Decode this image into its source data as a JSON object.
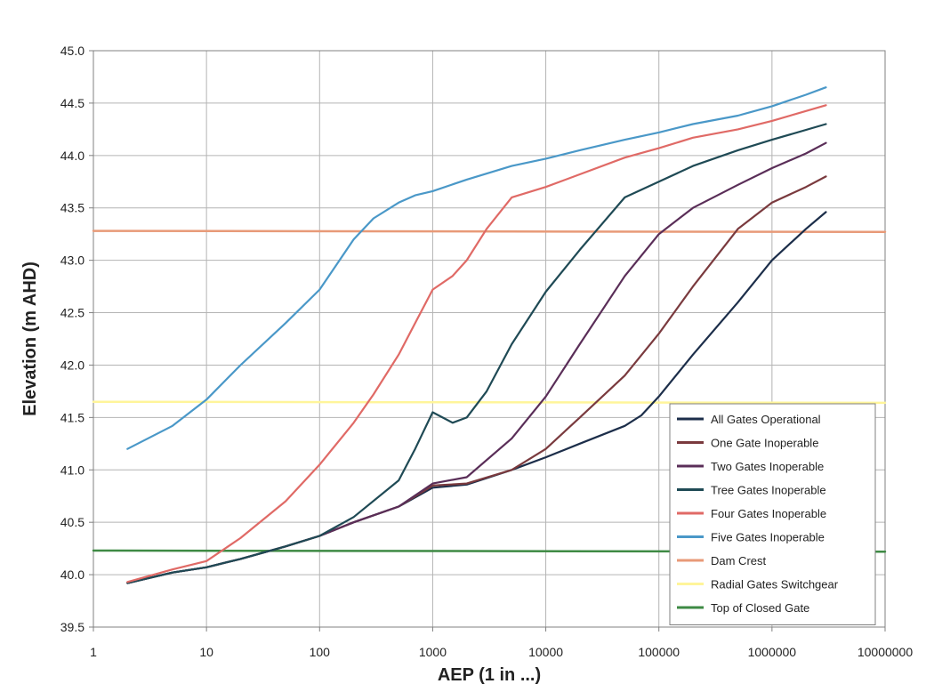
{
  "chart_data": {
    "type": "line",
    "title": "",
    "xlabel": "AEP (1 in ...)",
    "ylabel": "Elevation (m AHD)",
    "x_scale": "log",
    "xlim": [
      1,
      10000000
    ],
    "ylim": [
      39.5,
      45.0
    ],
    "x_ticks": [
      1,
      10,
      100,
      1000,
      10000,
      100000,
      1000000,
      10000000
    ],
    "x_tick_labels": [
      "1",
      "10",
      "100",
      "1000",
      "10000",
      "100000",
      "1000000",
      "10000000"
    ],
    "y_ticks": [
      39.5,
      40.0,
      40.5,
      41.0,
      41.5,
      42.0,
      42.5,
      43.0,
      43.5,
      44.0,
      44.5,
      45.0
    ],
    "y_tick_labels": [
      "39.5",
      "40.0",
      "40.5",
      "41.0",
      "41.5",
      "42.0",
      "42.5",
      "43.0",
      "43.5",
      "44.0",
      "44.5",
      "45.0"
    ],
    "grid": true,
    "legend_position": "bottom-right",
    "series": [
      {
        "name": "All Gates Operational",
        "color": "#1c2e4a",
        "x": [
          2,
          5,
          10,
          20,
          50,
          100,
          200,
          500,
          1000,
          2000,
          5000,
          10000,
          20000,
          50000,
          70000,
          100000,
          200000,
          500000,
          1000000,
          2000000,
          3000000
        ],
        "y": [
          39.92,
          40.02,
          40.07,
          40.15,
          40.27,
          40.37,
          40.5,
          40.65,
          40.83,
          40.86,
          41.0,
          41.12,
          41.25,
          41.42,
          41.52,
          41.7,
          42.1,
          42.6,
          43.0,
          43.3,
          43.46
        ]
      },
      {
        "name": "One Gate Inoperable",
        "color": "#7a3a3e",
        "x": [
          2,
          5,
          10,
          20,
          50,
          100,
          200,
          500,
          1000,
          2000,
          5000,
          10000,
          20000,
          50000,
          100000,
          200000,
          500000,
          1000000,
          2000000,
          3000000
        ],
        "y": [
          39.92,
          40.02,
          40.07,
          40.15,
          40.27,
          40.37,
          40.5,
          40.65,
          40.85,
          40.87,
          41.0,
          41.2,
          41.5,
          41.9,
          42.3,
          42.75,
          43.3,
          43.55,
          43.7,
          43.8
        ]
      },
      {
        "name": "Two Gates Inoperable",
        "color": "#5a2e58",
        "x": [
          2,
          5,
          10,
          20,
          50,
          100,
          200,
          500,
          1000,
          2000,
          5000,
          10000,
          20000,
          50000,
          100000,
          200000,
          500000,
          1000000,
          2000000,
          3000000
        ],
        "y": [
          39.92,
          40.02,
          40.07,
          40.15,
          40.27,
          40.37,
          40.5,
          40.65,
          40.87,
          40.93,
          41.3,
          41.7,
          42.2,
          42.85,
          43.25,
          43.5,
          43.72,
          43.88,
          44.02,
          44.12
        ]
      },
      {
        "name": "Tree Gates Inoperable",
        "color": "#1f4a55",
        "x": [
          2,
          5,
          10,
          20,
          50,
          100,
          200,
          500,
          700,
          1000,
          1500,
          2000,
          3000,
          5000,
          10000,
          20000,
          50000,
          100000,
          200000,
          500000,
          1000000,
          3000000
        ],
        "y": [
          39.92,
          40.02,
          40.07,
          40.15,
          40.27,
          40.37,
          40.55,
          40.9,
          41.2,
          41.55,
          41.45,
          41.5,
          41.75,
          42.2,
          42.7,
          43.1,
          43.6,
          43.75,
          43.9,
          44.05,
          44.15,
          44.3
        ]
      },
      {
        "name": "Four Gates Inoperable",
        "color": "#e06a66",
        "x": [
          2,
          5,
          10,
          20,
          50,
          100,
          200,
          300,
          500,
          700,
          1000,
          1500,
          2000,
          3000,
          5000,
          10000,
          20000,
          50000,
          100000,
          200000,
          500000,
          1000000,
          3000000
        ],
        "y": [
          39.93,
          40.05,
          40.13,
          40.35,
          40.7,
          41.05,
          41.45,
          41.72,
          42.1,
          42.4,
          42.72,
          42.85,
          43.0,
          43.3,
          43.6,
          43.7,
          43.82,
          43.98,
          44.07,
          44.17,
          44.25,
          44.33,
          44.48
        ]
      },
      {
        "name": "Five Gates Inoperable",
        "color": "#4a98c8",
        "x": [
          2,
          5,
          10,
          20,
          50,
          100,
          150,
          200,
          300,
          500,
          700,
          1000,
          2000,
          5000,
          10000,
          20000,
          50000,
          100000,
          200000,
          500000,
          1000000,
          2000000,
          3000000
        ],
        "y": [
          41.2,
          41.42,
          41.67,
          42.0,
          42.4,
          42.72,
          43.0,
          43.2,
          43.4,
          43.55,
          43.62,
          43.66,
          43.77,
          43.9,
          43.97,
          44.05,
          44.15,
          44.22,
          44.3,
          44.38,
          44.47,
          44.58,
          44.65
        ]
      },
      {
        "name": "Dam Crest",
        "color": "#e89a78",
        "x": [
          1,
          10000000
        ],
        "y": [
          43.28,
          43.27
        ]
      },
      {
        "name": "Radial Gates Switchgear",
        "color": "#fff59a",
        "x": [
          1,
          10000000
        ],
        "y": [
          41.65,
          41.64
        ]
      },
      {
        "name": "Top of Closed Gate",
        "color": "#3e8a44",
        "x": [
          1,
          10000000
        ],
        "y": [
          40.23,
          40.22
        ]
      }
    ]
  }
}
